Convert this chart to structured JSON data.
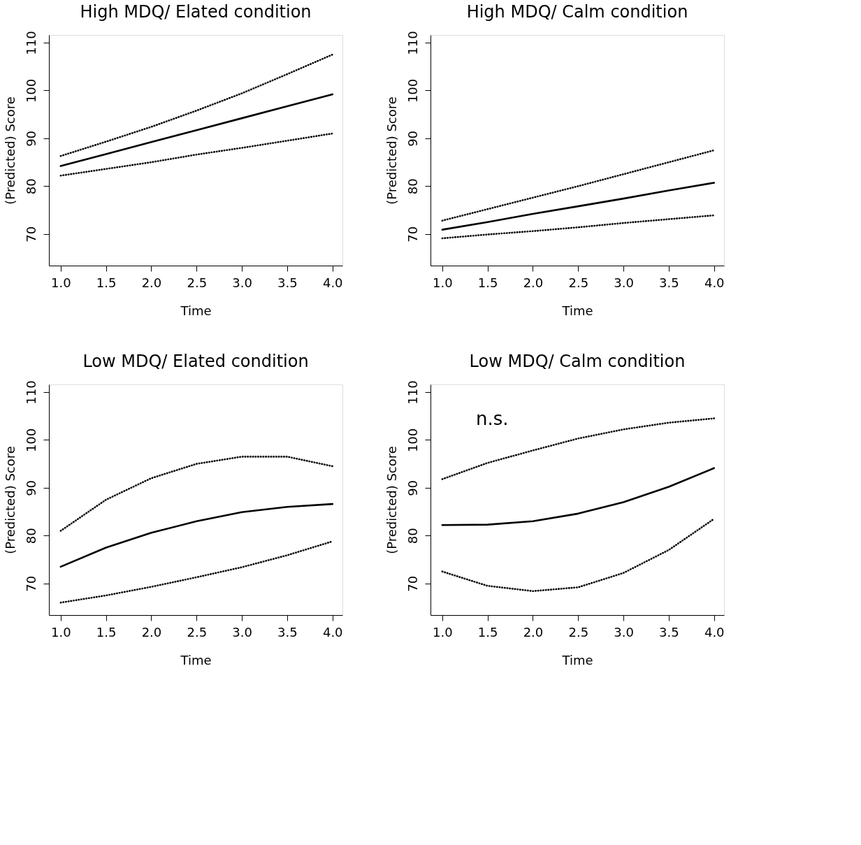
{
  "chart_data": [
    {
      "type": "line",
      "title": "High MDQ/ Elated condition",
      "xlabel": "Time",
      "ylabel": "(Predicted) Score",
      "xlim": [
        0.87,
        4.11
      ],
      "ylim": [
        63.4,
        111.6
      ],
      "xticks": [
        {
          "value": 1,
          "label": "1.0"
        },
        {
          "value": 1.5,
          "label": "1.5"
        },
        {
          "value": 2,
          "label": "2.0"
        },
        {
          "value": 2.5,
          "label": "2.5"
        },
        {
          "value": 3,
          "label": "3.0"
        },
        {
          "value": 3.5,
          "label": "3.5"
        },
        {
          "value": 4,
          "label": "4.0"
        }
      ],
      "yticks": [
        70,
        80,
        90,
        100,
        110
      ],
      "grid": false,
      "marker": "none",
      "x": [
        1,
        1.5,
        2,
        2.5,
        3,
        3.5,
        4
      ],
      "series": [
        {
          "color": "#000000",
          "line_style": "solid",
          "values": [
            84.2,
            86.7,
            89.2,
            91.7,
            94.2,
            96.7,
            99.2
          ]
        },
        {
          "color": "#000000",
          "line_style": "dotted",
          "values": [
            86.3,
            89.3,
            92.4,
            95.8,
            99.4,
            103.4,
            107.5
          ]
        },
        {
          "color": "#000000",
          "line_style": "dotted",
          "values": [
            82.2,
            83.6,
            85.0,
            86.6,
            88.0,
            89.5,
            91.0
          ]
        }
      ]
    },
    {
      "type": "line",
      "title": "High MDQ/ Calm condition",
      "xlabel": "Time",
      "ylabel": "(Predicted) Score",
      "xlim": [
        0.87,
        4.11
      ],
      "ylim": [
        63.4,
        111.6
      ],
      "xticks": [
        {
          "value": 1,
          "label": "1.0"
        },
        {
          "value": 1.5,
          "label": "1.5"
        },
        {
          "value": 2,
          "label": "2.0"
        },
        {
          "value": 2.5,
          "label": "2.5"
        },
        {
          "value": 3,
          "label": "3.0"
        },
        {
          "value": 3.5,
          "label": "3.5"
        },
        {
          "value": 4,
          "label": "4.0"
        }
      ],
      "yticks": [
        70,
        80,
        90,
        100,
        110
      ],
      "grid": false,
      "marker": "none",
      "x": [
        1,
        1.5,
        2,
        2.5,
        3,
        3.5,
        4
      ],
      "series": [
        {
          "color": "#000000",
          "line_style": "solid",
          "values": [
            70.9,
            72.5,
            74.2,
            75.8,
            77.4,
            79.1,
            80.7
          ]
        },
        {
          "color": "#000000",
          "line_style": "dotted",
          "values": [
            72.8,
            75.2,
            77.6,
            80.0,
            82.5,
            85.0,
            87.5
          ]
        },
        {
          "color": "#000000",
          "line_style": "dotted",
          "values": [
            69.1,
            69.9,
            70.6,
            71.4,
            72.3,
            73.1,
            73.9
          ]
        }
      ]
    },
    {
      "type": "line",
      "title": "Low MDQ/ Elated condition",
      "xlabel": "Time",
      "ylabel": "(Predicted) Score",
      "xlim": [
        0.87,
        4.11
      ],
      "ylim": [
        63.4,
        111.6
      ],
      "xticks": [
        {
          "value": 1,
          "label": "1.0"
        },
        {
          "value": 1.5,
          "label": "1.5"
        },
        {
          "value": 2,
          "label": "2.0"
        },
        {
          "value": 2.5,
          "label": "2.5"
        },
        {
          "value": 3,
          "label": "3.0"
        },
        {
          "value": 3.5,
          "label": "3.5"
        },
        {
          "value": 4,
          "label": "4.0"
        }
      ],
      "yticks": [
        70,
        80,
        90,
        100,
        110
      ],
      "grid": false,
      "marker": "none",
      "x": [
        1,
        1.5,
        2,
        2.5,
        3,
        3.5,
        4
      ],
      "series": [
        {
          "color": "#000000",
          "line_style": "solid",
          "values": [
            73.5,
            77.5,
            80.6,
            83.0,
            84.9,
            86.0,
            86.6
          ]
        },
        {
          "color": "#000000",
          "line_style": "dotted",
          "values": [
            81.0,
            87.5,
            92.0,
            95.0,
            96.5,
            96.5,
            94.5
          ]
        },
        {
          "color": "#000000",
          "line_style": "dotted",
          "values": [
            66.0,
            67.5,
            69.3,
            71.3,
            73.4,
            75.9,
            78.8
          ]
        }
      ]
    },
    {
      "type": "line",
      "title": "Low MDQ/ Calm condition",
      "xlabel": "Time",
      "ylabel": "(Predicted) Score",
      "xlim": [
        0.87,
        4.11
      ],
      "ylim": [
        63.4,
        111.6
      ],
      "xticks": [
        {
          "value": 1,
          "label": "1.0"
        },
        {
          "value": 1.5,
          "label": "1.5"
        },
        {
          "value": 2,
          "label": "2.0"
        },
        {
          "value": 2.5,
          "label": "2.5"
        },
        {
          "value": 3,
          "label": "3.0"
        },
        {
          "value": 3.5,
          "label": "3.5"
        },
        {
          "value": 4,
          "label": "4.0"
        }
      ],
      "yticks": [
        70,
        80,
        90,
        100,
        110
      ],
      "grid": false,
      "marker": "none",
      "annotations": [
        "n.s."
      ],
      "x": [
        1,
        1.5,
        2,
        2.5,
        3,
        3.5,
        4
      ],
      "series": [
        {
          "color": "#000000",
          "line_style": "solid",
          "values": [
            82.2,
            82.3,
            83.0,
            84.6,
            87.0,
            90.2,
            94.1
          ]
        },
        {
          "color": "#000000",
          "line_style": "dotted",
          "values": [
            91.8,
            95.2,
            97.8,
            100.3,
            102.2,
            103.6,
            104.5
          ]
        },
        {
          "color": "#000000",
          "line_style": "dotted",
          "values": [
            72.5,
            69.5,
            68.4,
            69.2,
            72.2,
            77.0,
            83.5
          ]
        }
      ]
    }
  ]
}
